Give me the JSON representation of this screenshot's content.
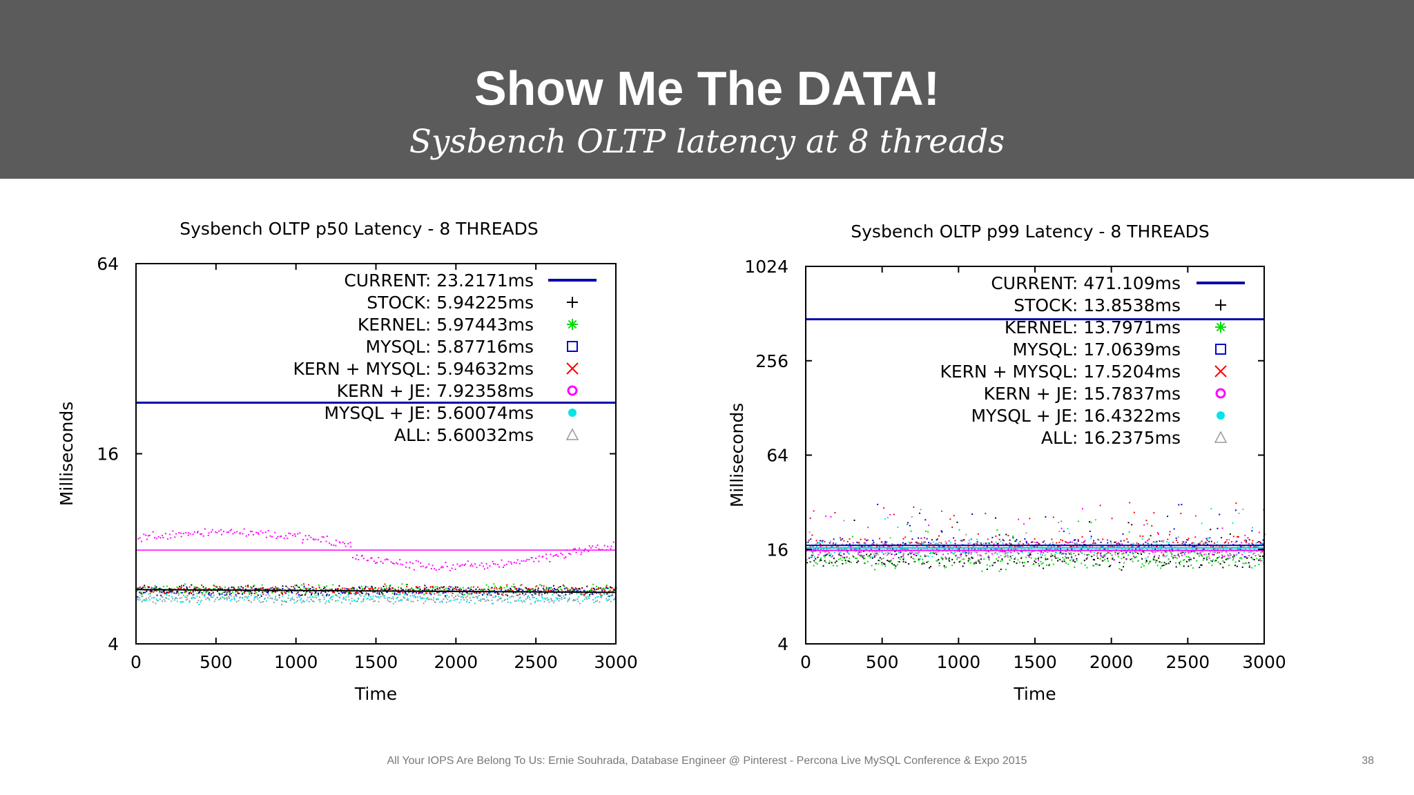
{
  "slide": {
    "title": "Show Me The DATA!",
    "subtitle": "Sysbench OLTP latency at 8 threads",
    "footer": "All Your IOPS Are Belong To Us: Ernie Souhrada, Database Engineer @ Pinterest - Percona Live MySQL Conference & Expo 2015",
    "page_number": "38"
  },
  "chart_data": [
    {
      "type": "scatter",
      "title": "Sysbench OLTP p50 Latency - 8 THREADS",
      "xlabel": "Time",
      "ylabel": "Milliseconds",
      "xlim": [
        0,
        3000
      ],
      "ylim": [
        4,
        64
      ],
      "yscale": "log2",
      "x_ticks": [
        "0",
        "500",
        "1000",
        "1500",
        "2000",
        "2500",
        "3000"
      ],
      "y_ticks": [
        "4",
        "16",
        "64"
      ],
      "legend_position": "top-right",
      "series": [
        {
          "name": "CURRENT: 23.2171ms",
          "marker": "line",
          "color": "#0000aa",
          "mean": 23.2171
        },
        {
          "name": "STOCK: 5.94225ms",
          "marker": "+",
          "color": "#000000",
          "mean": 5.94225
        },
        {
          "name": "KERNEL: 5.97443ms",
          "marker": "*",
          "color": "#00dd00",
          "mean": 5.97443
        },
        {
          "name": "MYSQL: 5.87716ms",
          "marker": "square",
          "color": "#0000cc",
          "mean": 5.87716
        },
        {
          "name": "KERN + MYSQL: 5.94632ms",
          "marker": "x",
          "color": "#ff0000",
          "mean": 5.94632
        },
        {
          "name": "KERN + JE: 7.92358ms",
          "marker": "circle",
          "color": "#ff00ff",
          "mean": 7.92358
        },
        {
          "name": "MYSQL + JE: 5.60074ms",
          "marker": "dot",
          "color": "#00e5e5",
          "mean": 5.60074
        },
        {
          "name": "ALL: 5.60032ms",
          "marker": "triangle",
          "color": "#999999",
          "mean": 5.60032
        }
      ]
    },
    {
      "type": "scatter",
      "title": "Sysbench OLTP p99 Latency - 8 THREADS",
      "xlabel": "Time",
      "ylabel": "Milliseconds",
      "xlim": [
        0,
        3000
      ],
      "ylim": [
        4,
        1024
      ],
      "yscale": "log4",
      "x_ticks": [
        "0",
        "500",
        "1000",
        "1500",
        "2000",
        "2500",
        "3000"
      ],
      "y_ticks": [
        "4",
        "16",
        "64",
        "256",
        "1024"
      ],
      "legend_position": "top-right",
      "series": [
        {
          "name": "CURRENT: 471.109ms",
          "marker": "line",
          "color": "#0000aa",
          "mean": 471.109
        },
        {
          "name": "STOCK: 13.8538ms",
          "marker": "+",
          "color": "#000000",
          "mean": 13.8538
        },
        {
          "name": "KERNEL: 13.7971ms",
          "marker": "*",
          "color": "#00dd00",
          "mean": 13.7971
        },
        {
          "name": "MYSQL: 17.0639ms",
          "marker": "square",
          "color": "#0000cc",
          "mean": 17.0639
        },
        {
          "name": "KERN + MYSQL: 17.5204ms",
          "marker": "x",
          "color": "#ff0000",
          "mean": 17.5204
        },
        {
          "name": "KERN + JE: 15.7837ms",
          "marker": "circle",
          "color": "#ff00ff",
          "mean": 15.7837
        },
        {
          "name": "MYSQL + JE: 16.4322ms",
          "marker": "dot",
          "color": "#00e5e5",
          "mean": 16.4322
        },
        {
          "name": "ALL: 16.2375ms",
          "marker": "triangle",
          "color": "#999999",
          "mean": 16.2375
        }
      ]
    }
  ]
}
